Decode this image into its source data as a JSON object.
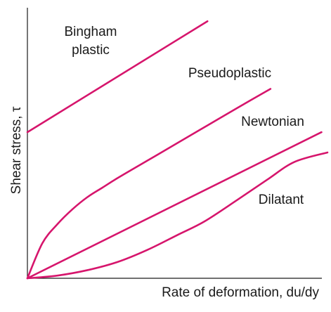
{
  "chart_data": {
    "type": "line",
    "xlabel": "Rate of deformation, du/dy",
    "ylabel": "Shear stress, τ",
    "xlim": [
      0,
      10
    ],
    "ylim": [
      0,
      10
    ],
    "grid": false,
    "legend": "none",
    "line_color": "#d6156c",
    "series": [
      {
        "name": "Bingham plastic",
        "label_lines": [
          "Bingham",
          "plastic"
        ],
        "points": [
          [
            0,
            5.4
          ],
          [
            6.0,
            9.5
          ]
        ]
      },
      {
        "name": "Pseudoplastic",
        "label_lines": [
          "Pseudoplastic"
        ],
        "points": [
          [
            0,
            0
          ],
          [
            0.5,
            1.3
          ],
          [
            1.0,
            2.0
          ],
          [
            1.5,
            2.55
          ],
          [
            2.0,
            3.0
          ],
          [
            2.5,
            3.35
          ],
          [
            3.0,
            3.7
          ],
          [
            4.0,
            4.35
          ],
          [
            5.0,
            5.0
          ],
          [
            6.0,
            5.65
          ],
          [
            7.0,
            6.3
          ],
          [
            8.1,
            7.0
          ]
        ]
      },
      {
        "name": "Newtonian",
        "label_lines": [
          "Newtonian"
        ],
        "points": [
          [
            0,
            0
          ],
          [
            9.8,
            5.4
          ]
        ]
      },
      {
        "name": "Dilatant",
        "label_lines": [
          "Dilatant"
        ],
        "points": [
          [
            0,
            0
          ],
          [
            1.0,
            0.1
          ],
          [
            2.0,
            0.3
          ],
          [
            3.0,
            0.6
          ],
          [
            4.0,
            1.05
          ],
          [
            5.0,
            1.6
          ],
          [
            5.9,
            2.1
          ],
          [
            7.0,
            2.9
          ],
          [
            8.0,
            3.65
          ],
          [
            8.9,
            4.3
          ],
          [
            10.0,
            4.65
          ]
        ]
      }
    ]
  }
}
